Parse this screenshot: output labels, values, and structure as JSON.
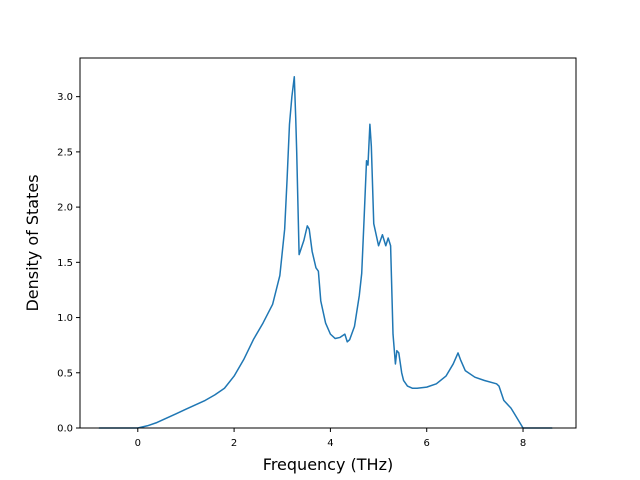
{
  "chart_data": {
    "type": "line",
    "title": "",
    "xlabel": "Frequency (THz)",
    "ylabel": "Density of States",
    "xlim": [
      -1.2,
      9.1
    ],
    "ylim": [
      0.0,
      3.35
    ],
    "xticks": [
      0,
      2,
      4,
      6,
      8
    ],
    "xtick_labels": [
      "0",
      "2",
      "4",
      "6",
      "8"
    ],
    "yticks": [
      0.0,
      0.5,
      1.0,
      1.5,
      2.0,
      2.5,
      3.0
    ],
    "ytick_labels": [
      "0.0",
      "0.5",
      "1.0",
      "1.5",
      "2.0",
      "2.5",
      "3.0"
    ],
    "grid": false,
    "series": [
      {
        "color": "#1f77b4",
        "x": [
          -0.8,
          -0.5,
          0.0,
          0.2,
          0.4,
          0.6,
          0.8,
          1.0,
          1.2,
          1.4,
          1.6,
          1.8,
          2.0,
          2.2,
          2.4,
          2.6,
          2.8,
          2.95,
          3.05,
          3.1,
          3.15,
          3.2,
          3.25,
          3.28,
          3.3,
          3.35,
          3.45,
          3.52,
          3.56,
          3.62,
          3.7,
          3.75,
          3.8,
          3.9,
          4.0,
          4.1,
          4.2,
          4.3,
          4.35,
          4.4,
          4.5,
          4.6,
          4.65,
          4.7,
          4.75,
          4.78,
          4.82,
          4.85,
          4.9,
          5.0,
          5.08,
          5.15,
          5.2,
          5.25,
          5.3,
          5.35,
          5.38,
          5.42,
          5.48,
          5.52,
          5.6,
          5.7,
          5.8,
          6.0,
          6.2,
          6.4,
          6.55,
          6.65,
          6.7,
          6.8,
          7.0,
          7.2,
          7.45,
          7.5,
          7.6,
          7.75,
          7.82,
          8.0,
          8.3,
          8.6
        ],
        "y": [
          0.0,
          0.0,
          0.0,
          0.02,
          0.05,
          0.09,
          0.13,
          0.17,
          0.21,
          0.25,
          0.3,
          0.36,
          0.47,
          0.62,
          0.8,
          0.95,
          1.12,
          1.38,
          1.8,
          2.25,
          2.75,
          3.0,
          3.18,
          2.8,
          2.5,
          1.57,
          1.7,
          1.83,
          1.8,
          1.6,
          1.45,
          1.42,
          1.15,
          0.95,
          0.85,
          0.81,
          0.82,
          0.85,
          0.78,
          0.8,
          0.92,
          1.2,
          1.4,
          1.9,
          2.42,
          2.38,
          2.75,
          2.55,
          1.85,
          1.65,
          1.75,
          1.65,
          1.72,
          1.65,
          0.85,
          0.58,
          0.7,
          0.68,
          0.5,
          0.43,
          0.38,
          0.36,
          0.36,
          0.37,
          0.4,
          0.47,
          0.58,
          0.68,
          0.62,
          0.52,
          0.46,
          0.43,
          0.4,
          0.38,
          0.25,
          0.18,
          0.13,
          0.0,
          0.0,
          0.0
        ]
      }
    ]
  }
}
